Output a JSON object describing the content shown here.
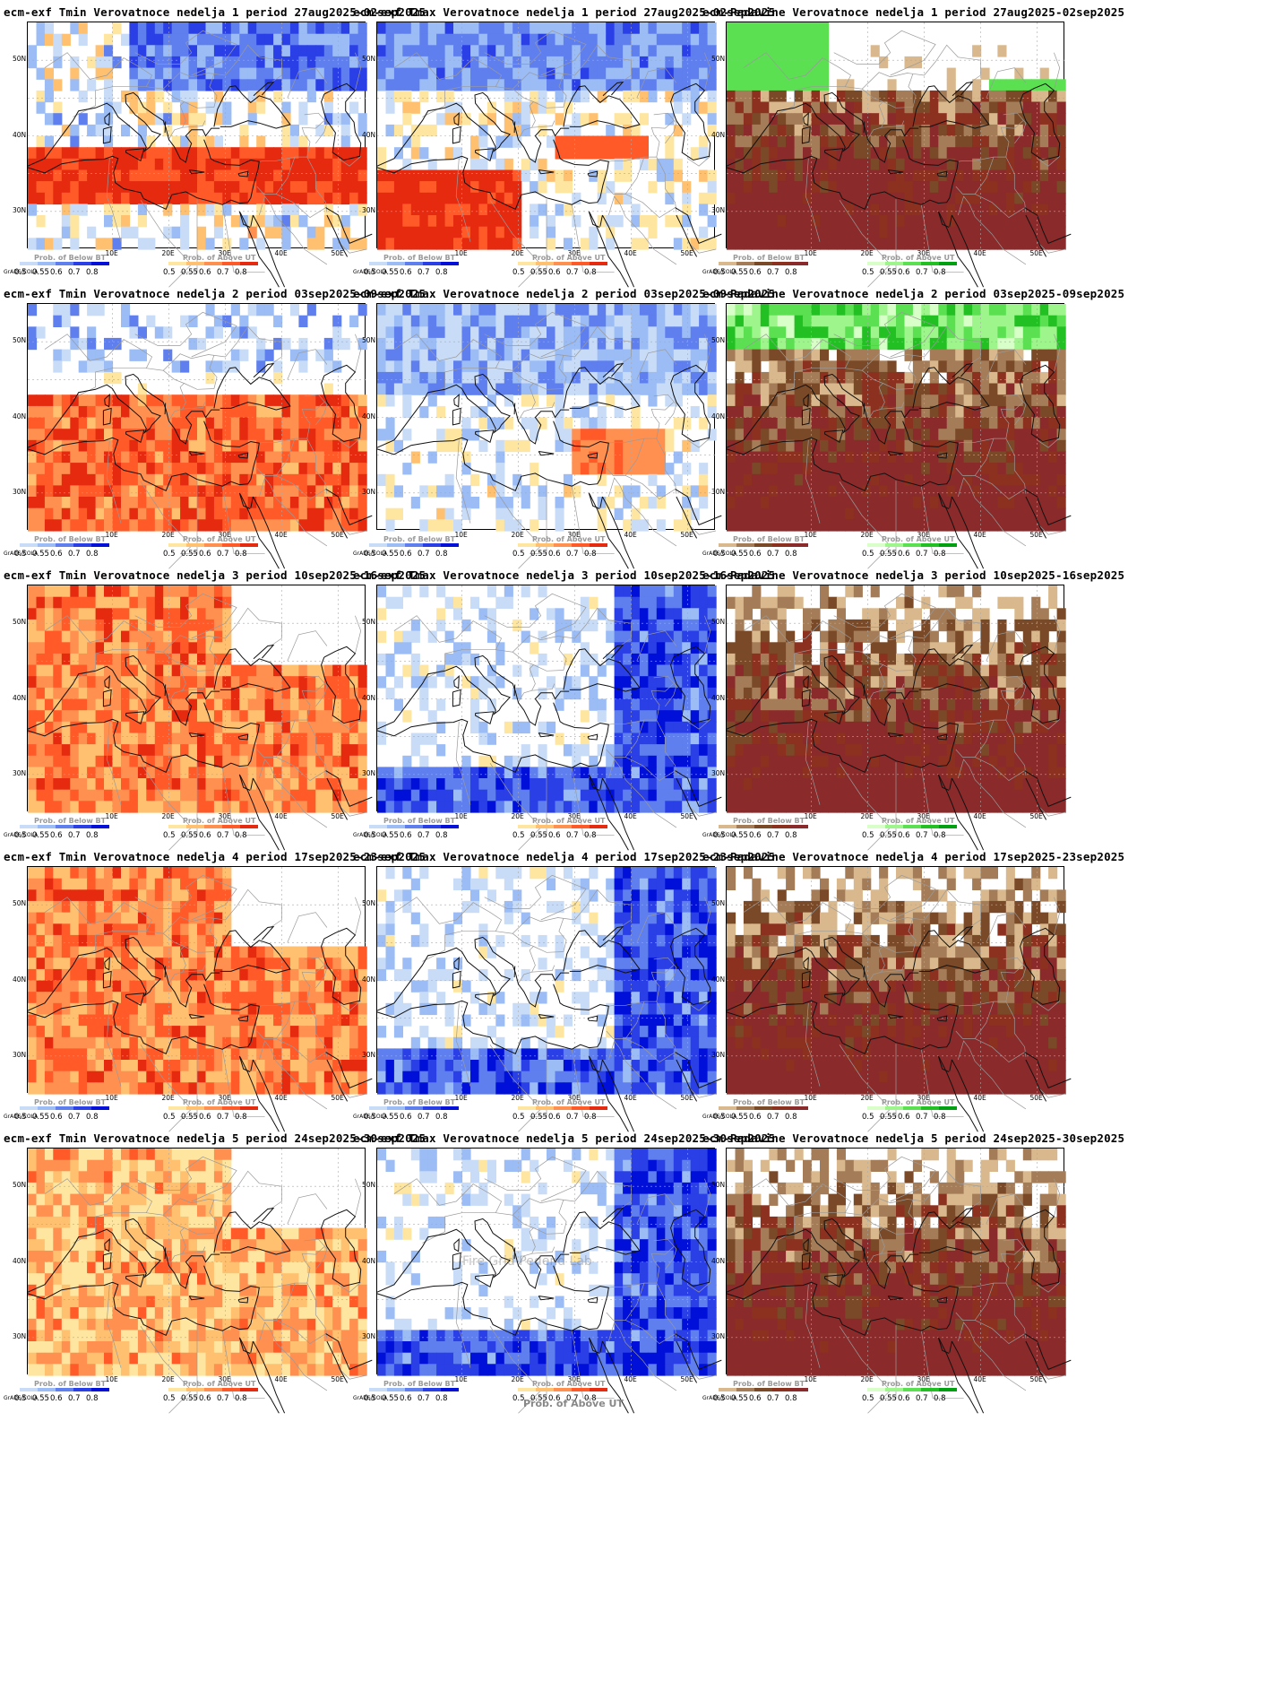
{
  "panels": [
    {
      "title": "ecm-exf Tmin Verovatnoce nedelja 1 period 27aug2025-02sep2025",
      "variable": "tmin",
      "week": 1,
      "coverage": 0.62,
      "warm_share": 0.75
    },
    {
      "title": "ecm-exf Tmax Verovatnoce nedelja 1 period 27aug2025-02sep2025",
      "variable": "tmax",
      "week": 1,
      "coverage": 0.55,
      "warm_share": 0.45
    },
    {
      "title": "ecm-Padavine Verovatnoce nedelja 1 period 27aug2025-02sep2025",
      "variable": "precip",
      "week": 1,
      "coverage": 0.85,
      "warm_share": 0.82
    },
    {
      "title": "ecm-exf Tmin Verovatnoce nedelja 2 period 03sep2025-09sep2025",
      "variable": "tmin",
      "week": 2,
      "coverage": 0.5,
      "warm_share": 0.98
    },
    {
      "title": "ecm-exf Tmax Verovatnoce nedelja 2 period 03sep2025-09sep2025",
      "variable": "tmax",
      "week": 2,
      "coverage": 0.55,
      "warm_share": 0.35
    },
    {
      "title": "ecm-Padavine Verovatnoce nedelja 2 period 03sep2025-09sep2025",
      "variable": "precip",
      "week": 2,
      "coverage": 0.9,
      "warm_share": 0.88
    },
    {
      "title": "ecm-exf Tmin Verovatnoce nedelja 3 period 10sep2025-16sep2025",
      "variable": "tmin",
      "week": 3,
      "coverage": 0.6,
      "warm_share": 0.95
    },
    {
      "title": "ecm-exf Tmax Verovatnoce nedelja 3 period 10sep2025-16sep2025",
      "variable": "tmax",
      "week": 3,
      "coverage": 0.45,
      "warm_share": 0.05
    },
    {
      "title": "ecm-Padavine Verovatnoce nedelja 3 period 10sep2025-16sep2025",
      "variable": "precip",
      "week": 3,
      "coverage": 0.95,
      "warm_share": 0.97
    },
    {
      "title": "ecm-exf Tmin Verovatnoce nedelja 4 period 17sep2025-23sep2025",
      "variable": "tmin",
      "week": 4,
      "coverage": 0.6,
      "warm_share": 0.97
    },
    {
      "title": "ecm-exf Tmax Verovatnoce nedelja 4 period 17sep2025-23sep2025",
      "variable": "tmax",
      "week": 4,
      "coverage": 0.42,
      "warm_share": 0.03
    },
    {
      "title": "ecm-Padavine Verovatnoce nedelja 4 period 17sep2025-23sep2025",
      "variable": "precip",
      "week": 4,
      "coverage": 0.93,
      "warm_share": 0.97
    },
    {
      "title": "ecm-exf Tmin Verovatnoce nedelja 5 period 24sep2025-30sep2025",
      "variable": "tmin",
      "week": 5,
      "coverage": 0.72,
      "warm_share": 0.98
    },
    {
      "title": "ecm-exf Tmax Verovatnoce nedelja 5 period 24sep2025-30sep2025",
      "variable": "tmax",
      "week": 5,
      "coverage": 0.48,
      "warm_share": 0.04
    },
    {
      "title": "ecm-Padavine Verovatnoce nedelja 5 period 24sep2025-30sep2025",
      "variable": "precip",
      "week": 5,
      "coverage": 0.86,
      "warm_share": 0.97
    }
  ],
  "axes": {
    "lat_labels": [
      "50N",
      "40N",
      "30N"
    ],
    "lon_labels": [
      "10E",
      "20E",
      "30E",
      "40E",
      "50E"
    ]
  },
  "temp_legend": {
    "below_title": "Prob. of Below BT",
    "above_title": "Prob. of Above UT",
    "values": [
      "0.5",
      "0.55",
      "0.6",
      "0.7",
      "0.8"
    ],
    "below_colors": [
      "#c8dcf8",
      "#9bbcf5",
      "#5f7fef",
      "#2a3fe6",
      "#0010d8"
    ],
    "above_colors": [
      "#ffe6a0",
      "#ffc070",
      "#ff9050",
      "#ff5a28",
      "#e62a10"
    ]
  },
  "precip_legend": {
    "below_title": "Prob. of Below BT",
    "above_title": "Prob. of Above UT",
    "values": [
      "0.5",
      "0.55",
      "0.6",
      "0.7",
      "0.8"
    ],
    "below_colors": [
      "#d8b88c",
      "#a47c58",
      "#7a4a28",
      "#8c3020",
      "#8b2a2a"
    ],
    "above_colors": [
      "#d8ffc8",
      "#9ef58c",
      "#5ae050",
      "#22c022",
      "#00a010"
    ]
  },
  "credit": "GrADS/COLA",
  "watermark": "Fire Grid Pedend Lab",
  "bottom_label": "Prob. of Above UT"
}
